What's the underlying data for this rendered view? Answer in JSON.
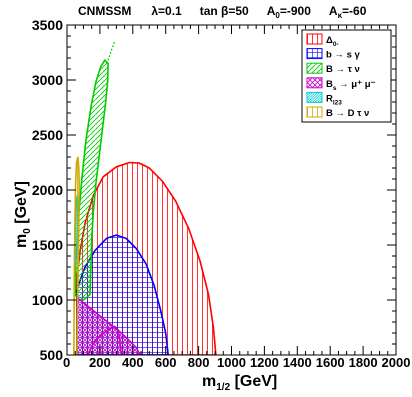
{
  "chart_data": {
    "type": "area",
    "title_parts": [
      "CNMSSM",
      "λ=0.1",
      "tan β=50",
      "A",
      "=-900",
      "A",
      "=-60"
    ],
    "title_subscripts": [
      "0",
      "κ"
    ],
    "xlabel_main": "m",
    "xlabel_sub": "1/2",
    "xlabel_unit": "[GeV]",
    "ylabel_main": "m",
    "ylabel_sub": "0",
    "ylabel_unit": "[GeV]",
    "xlim": [
      0,
      2000
    ],
    "ylim": [
      500,
      3500
    ],
    "x_ticks": [
      "0",
      "200",
      "400",
      "600",
      "800",
      "1000",
      "1200",
      "1400",
      "1600",
      "1800",
      "2000"
    ],
    "x_tick_values": [
      0,
      200,
      400,
      600,
      800,
      1000,
      1200,
      1400,
      1600,
      1800,
      2000
    ],
    "y_ticks": [
      "500",
      "1000",
      "1500",
      "2000",
      "2500",
      "3000",
      "3500"
    ],
    "y_tick_values": [
      500,
      1000,
      1500,
      2000,
      2500,
      3000,
      3500
    ],
    "legend": [
      {
        "main": "Δ",
        "sub": "0-",
        "sup": "",
        "color": "#ff0000"
      },
      {
        "main": "b → s γ",
        "sub": "",
        "sup": "",
        "color": "#0000ff"
      },
      {
        "main": "B → τ ν",
        "sub": "",
        "sup": "",
        "color": "#00cc00"
      },
      {
        "main": "B",
        "sub": "s",
        "sup": "",
        "rest": " → μ⁺ μ⁻",
        "color": "#cc00cc"
      },
      {
        "main": "R",
        "sub": "l23",
        "sup": "",
        "color": "#00cccc"
      },
      {
        "main": "B → D τ ν",
        "sub": "",
        "sup": "",
        "color": "#ccaa00"
      }
    ],
    "series": [
      {
        "name": "Δ0-",
        "color": "#ff0000",
        "boundary": [
          [
            60,
            500
          ],
          [
            60,
            1200
          ],
          [
            80,
            1450
          ],
          [
            110,
            1700
          ],
          [
            160,
            1950
          ],
          [
            220,
            2120
          ],
          [
            300,
            2210
          ],
          [
            380,
            2250
          ],
          [
            440,
            2245
          ],
          [
            500,
            2200
          ],
          [
            580,
            2080
          ],
          [
            660,
            1900
          ],
          [
            740,
            1650
          ],
          [
            810,
            1350
          ],
          [
            860,
            1050
          ],
          [
            890,
            750
          ],
          [
            905,
            500
          ]
        ]
      },
      {
        "name": "b → s γ",
        "color": "#0000ff",
        "boundary": [
          [
            60,
            500
          ],
          [
            60,
            1100
          ],
          [
            110,
            1300
          ],
          [
            170,
            1450
          ],
          [
            240,
            1560
          ],
          [
            300,
            1590
          ],
          [
            360,
            1560
          ],
          [
            420,
            1470
          ],
          [
            480,
            1330
          ],
          [
            530,
            1130
          ],
          [
            570,
            900
          ],
          [
            600,
            700
          ],
          [
            615,
            500
          ]
        ]
      },
      {
        "name": "B → τ ν",
        "color": "#00cc00",
        "boundary": [
          [
            50,
            1050
          ],
          [
            55,
            1400
          ],
          [
            70,
            1750
          ],
          [
            90,
            2100
          ],
          [
            115,
            2450
          ],
          [
            145,
            2750
          ],
          [
            175,
            2980
          ],
          [
            205,
            3120
          ],
          [
            230,
            3180
          ],
          [
            250,
            3150
          ],
          [
            248,
            3000
          ],
          [
            235,
            2800
          ],
          [
            215,
            2550
          ],
          [
            195,
            2300
          ],
          [
            175,
            2050
          ],
          [
            160,
            1800
          ],
          [
            150,
            1550
          ],
          [
            145,
            1300
          ],
          [
            140,
            1050
          ],
          [
            100,
            1000
          ],
          [
            70,
            1000
          ]
        ],
        "tail": [
          [
            250,
            3180
          ],
          [
            270,
            3270
          ],
          [
            290,
            3350
          ]
        ]
      },
      {
        "name": "Bs → μ+ μ-",
        "color": "#cc00cc",
        "boundary": [
          [
            60,
            500
          ],
          [
            60,
            1020
          ],
          [
            90,
            990
          ],
          [
            130,
            940
          ],
          [
            180,
            880
          ],
          [
            230,
            820
          ],
          [
            280,
            760
          ],
          [
            330,
            700
          ],
          [
            380,
            630
          ],
          [
            420,
            570
          ],
          [
            445,
            500
          ]
        ],
        "inner": [
          [
            130,
            500
          ],
          [
            150,
            580
          ],
          [
            185,
            650
          ],
          [
            225,
            700
          ],
          [
            260,
            740
          ],
          [
            290,
            760
          ],
          [
            310,
            730
          ],
          [
            320,
            650
          ],
          [
            325,
            560
          ],
          [
            330,
            500
          ]
        ]
      },
      {
        "name": "Rl23",
        "color": "#00cccc",
        "boundary": [
          [
            48,
            1300
          ],
          [
            56,
            1380
          ],
          [
            60,
            1500
          ],
          [
            64,
            1650
          ],
          [
            66,
            1850
          ],
          [
            64,
            1950
          ],
          [
            58,
            1900
          ],
          [
            52,
            1750
          ],
          [
            48,
            1550
          ],
          [
            46,
            1400
          ]
        ]
      },
      {
        "name": "B → D τ ν",
        "color": "#ccaa00",
        "boundary": [
          [
            42,
            500
          ],
          [
            60,
            500
          ],
          [
            64,
            900
          ],
          [
            68,
            1300
          ],
          [
            72,
            1700
          ],
          [
            74,
            2050
          ],
          [
            72,
            2200
          ],
          [
            66,
            2300
          ],
          [
            58,
            2250
          ],
          [
            52,
            2050
          ],
          [
            48,
            1700
          ],
          [
            45,
            1300
          ],
          [
            43,
            900
          ]
        ]
      }
    ]
  }
}
